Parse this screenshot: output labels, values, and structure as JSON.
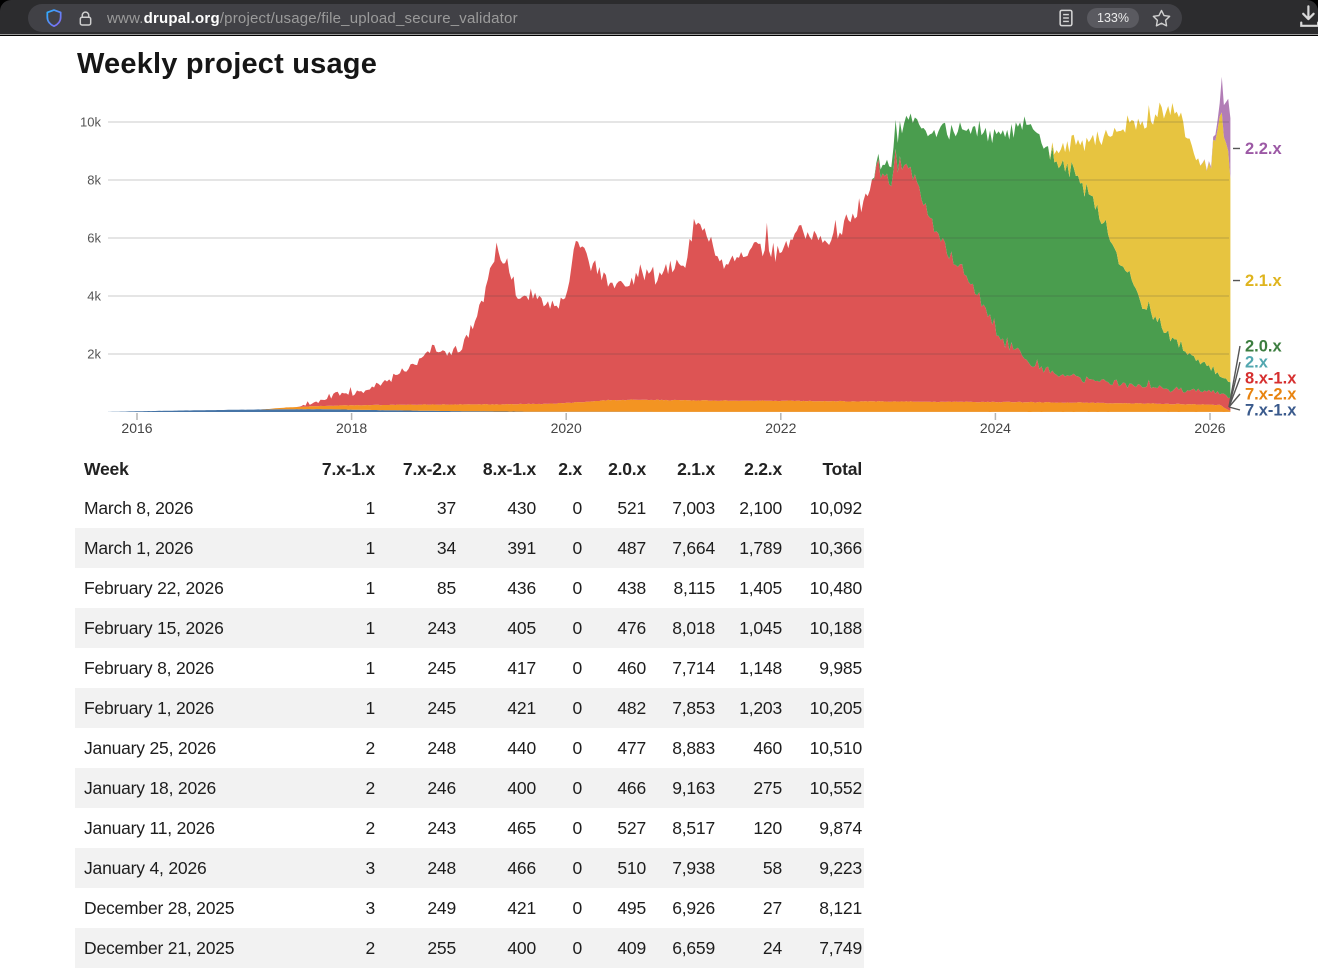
{
  "browser": {
    "url_prefix": "www.",
    "url_domain": "drupal.org",
    "url_path": "/project/usage/file_upload_secure_validator",
    "zoom_badge": "133%",
    "icons": {
      "shield": "shield-outline",
      "lock": "padlock",
      "reader_view": "document-lines",
      "bookmark": "star-outline",
      "download": "arrow-into-tray"
    }
  },
  "page": {
    "title": "Weekly project usage"
  },
  "chart_data": {
    "type": "area",
    "stacked": true,
    "title": "Weekly project usage",
    "grid": true,
    "legend_position": "right",
    "x_domain": [
      2015.73,
      2026.19
    ],
    "ylim": [
      0,
      10800
    ],
    "x_ticks": [
      2016,
      2018,
      2020,
      2022,
      2024,
      2026
    ],
    "y_ticks": [
      {
        "v": 2000,
        "label": "2k"
      },
      {
        "v": 4000,
        "label": "4k"
      },
      {
        "v": 6000,
        "label": "6k"
      },
      {
        "v": 8000,
        "label": "8k"
      },
      {
        "v": 10000,
        "label": "10k"
      }
    ],
    "series": [
      {
        "name": "7.x-1.x",
        "color": "#4674a6",
        "label_color": "#3a5a8c",
        "jitter": 0.4,
        "keypoints": [
          [
            2015.73,
            3
          ],
          [
            2016,
            25
          ],
          [
            2016.3,
            45
          ],
          [
            2016.6,
            62
          ],
          [
            2017,
            82
          ],
          [
            2017.4,
            95
          ],
          [
            2017.7,
            100
          ],
          [
            2018,
            80
          ],
          [
            2018.4,
            58
          ],
          [
            2018.8,
            38
          ],
          [
            2019.2,
            22
          ],
          [
            2019.6,
            12
          ],
          [
            2020,
            7
          ],
          [
            2021,
            4
          ],
          [
            2022,
            3
          ],
          [
            2024,
            2
          ],
          [
            2026.19,
            2
          ]
        ]
      },
      {
        "name": "7.x-2.x",
        "color": "#f39422",
        "label_color": "#e8830f",
        "jitter": 0.9,
        "keypoints": [
          [
            2017.15,
            0
          ],
          [
            2017.4,
            60
          ],
          [
            2017.7,
            110
          ],
          [
            2018,
            150
          ],
          [
            2018.5,
            200
          ],
          [
            2019,
            230
          ],
          [
            2019.5,
            255
          ],
          [
            2019.9,
            280
          ],
          [
            2020.1,
            330
          ],
          [
            2020.4,
            400
          ],
          [
            2020.7,
            420
          ],
          [
            2021,
            405
          ],
          [
            2021.5,
            390
          ],
          [
            2022,
            385
          ],
          [
            2022.5,
            372
          ],
          [
            2023,
            362
          ],
          [
            2023.5,
            352
          ],
          [
            2024,
            342
          ],
          [
            2024.5,
            332
          ],
          [
            2025,
            312
          ],
          [
            2025.5,
            285
          ],
          [
            2025.9,
            258
          ],
          [
            2026.02,
            250
          ],
          [
            2026.1,
            243
          ],
          [
            2026.13,
            150
          ],
          [
            2026.16,
            85
          ],
          [
            2026.19,
            36
          ]
        ]
      },
      {
        "name": "8.x-1.x",
        "color": "#dd5454",
        "label_color": "#d62f2f",
        "jitter": 6,
        "spike": 0.03,
        "keypoints": [
          [
            2017.5,
            0
          ],
          [
            2017.7,
            150
          ],
          [
            2017.85,
            420
          ],
          [
            2018.0,
            360
          ],
          [
            2018.2,
            620
          ],
          [
            2018.4,
            1000
          ],
          [
            2018.6,
            1400
          ],
          [
            2018.75,
            1950
          ],
          [
            2018.9,
            1650
          ],
          [
            2019.05,
            2150
          ],
          [
            2019.2,
            3300
          ],
          [
            2019.35,
            5300
          ],
          [
            2019.45,
            5100
          ],
          [
            2019.55,
            3650
          ],
          [
            2019.7,
            3950
          ],
          [
            2019.85,
            3250
          ],
          [
            2020.0,
            3650
          ],
          [
            2020.1,
            5450
          ],
          [
            2020.2,
            4900
          ],
          [
            2020.35,
            4250
          ],
          [
            2020.5,
            4050
          ],
          [
            2020.65,
            4350
          ],
          [
            2020.8,
            4250
          ],
          [
            2020.95,
            4450
          ],
          [
            2021.1,
            4650
          ],
          [
            2021.2,
            6100
          ],
          [
            2021.3,
            5650
          ],
          [
            2021.45,
            4850
          ],
          [
            2021.6,
            4950
          ],
          [
            2021.75,
            5350
          ],
          [
            2021.9,
            5050
          ],
          [
            2022.0,
            5250
          ],
          [
            2022.1,
            5650
          ],
          [
            2022.25,
            6050
          ],
          [
            2022.35,
            5550
          ],
          [
            2022.5,
            5650
          ],
          [
            2022.6,
            6250
          ],
          [
            2022.7,
            6050
          ],
          [
            2022.8,
            7350
          ],
          [
            2022.9,
            8050
          ],
          [
            2023.0,
            7650
          ],
          [
            2023.1,
            8250
          ],
          [
            2023.2,
            7850
          ],
          [
            2023.35,
            6850
          ],
          [
            2023.5,
            5550
          ],
          [
            2023.65,
            4650
          ],
          [
            2023.8,
            3850
          ],
          [
            2023.95,
            2850
          ],
          [
            2024.1,
            2050
          ],
          [
            2024.25,
            1550
          ],
          [
            2024.4,
            1220
          ],
          [
            2024.6,
            980
          ],
          [
            2024.8,
            830
          ],
          [
            2025.0,
            720
          ],
          [
            2025.3,
            610
          ],
          [
            2025.6,
            530
          ],
          [
            2025.9,
            460
          ],
          [
            2026.05,
            430
          ],
          [
            2026.19,
            420
          ]
        ]
      },
      {
        "name": "2.x",
        "color": "#55aab2",
        "label_color": "#52a7af",
        "jitter": 0,
        "keypoints": [
          [
            2015.73,
            0
          ],
          [
            2026.19,
            0
          ]
        ]
      },
      {
        "name": "2.0.x",
        "color": "#4a9d4e",
        "label_color": "#3c7d3f",
        "jitter": 5,
        "keypoints": [
          [
            2022.85,
            0
          ],
          [
            2023.0,
            500
          ],
          [
            2023.1,
            1100
          ],
          [
            2023.2,
            1750
          ],
          [
            2023.35,
            2600
          ],
          [
            2023.5,
            3900
          ],
          [
            2023.65,
            4700
          ],
          [
            2023.8,
            5400
          ],
          [
            2023.95,
            6300
          ],
          [
            2024.1,
            7200
          ],
          [
            2024.25,
            8000
          ],
          [
            2024.35,
            8200
          ],
          [
            2024.45,
            7700
          ],
          [
            2024.55,
            7300
          ],
          [
            2024.65,
            7400
          ],
          [
            2024.75,
            6900
          ],
          [
            2024.9,
            6300
          ],
          [
            2025.05,
            5100
          ],
          [
            2025.2,
            4000
          ],
          [
            2025.35,
            3000
          ],
          [
            2025.5,
            2300
          ],
          [
            2025.65,
            1750
          ],
          [
            2025.8,
            1250
          ],
          [
            2025.95,
            900
          ],
          [
            2026.05,
            700
          ],
          [
            2026.12,
            560
          ],
          [
            2026.19,
            521
          ]
        ]
      },
      {
        "name": "2.1.x",
        "color": "#e7c440",
        "label_color": "#dfb41e",
        "jitter": 4.5,
        "keypoints": [
          [
            2024.5,
            0
          ],
          [
            2024.6,
            500
          ],
          [
            2024.75,
            1100
          ],
          [
            2024.9,
            1900
          ],
          [
            2025.0,
            2900
          ],
          [
            2025.1,
            3900
          ],
          [
            2025.2,
            4900
          ],
          [
            2025.3,
            5700
          ],
          [
            2025.4,
            6400
          ],
          [
            2025.5,
            7100
          ],
          [
            2025.6,
            7800
          ],
          [
            2025.7,
            8100
          ],
          [
            2025.78,
            7500
          ],
          [
            2025.85,
            7100
          ],
          [
            2025.92,
            6800
          ],
          [
            2025.97,
            6660
          ],
          [
            2026.0,
            6900
          ],
          [
            2026.04,
            7900
          ],
          [
            2026.07,
            8500
          ],
          [
            2026.1,
            9160
          ],
          [
            2026.12,
            8880
          ],
          [
            2026.14,
            7850
          ],
          [
            2026.16,
            8020
          ],
          [
            2026.18,
            7660
          ],
          [
            2026.19,
            7000
          ]
        ]
      },
      {
        "name": "2.2.x",
        "color": "#b27db6",
        "label_color": "#9c59a5",
        "jitter": 2.5,
        "keypoints": [
          [
            2025.9,
            0
          ],
          [
            2025.97,
            24
          ],
          [
            2026.0,
            58
          ],
          [
            2026.03,
            120
          ],
          [
            2026.06,
            275
          ],
          [
            2026.09,
            460
          ],
          [
            2026.11,
            1203
          ],
          [
            2026.13,
            1148
          ],
          [
            2026.15,
            1405
          ],
          [
            2026.17,
            1789
          ],
          [
            2026.19,
            2100
          ]
        ]
      }
    ],
    "legend_order_top_to_bottom": [
      "2.2.x",
      "2.1.x",
      "2.0.x",
      "2.x",
      "8.x-1.x",
      "7.x-2.x",
      "7.x-1.x"
    ]
  },
  "table": {
    "columns": [
      "Week",
      "7.x-1.x",
      "7.x-2.x",
      "8.x-1.x",
      "2.x",
      "2.0.x",
      "2.1.x",
      "2.2.x",
      "Total"
    ],
    "rows": [
      [
        "March 8, 2026",
        "1",
        "37",
        "430",
        "0",
        "521",
        "7,003",
        "2,100",
        "10,092"
      ],
      [
        "March 1, 2026",
        "1",
        "34",
        "391",
        "0",
        "487",
        "7,664",
        "1,789",
        "10,366"
      ],
      [
        "February 22, 2026",
        "1",
        "85",
        "436",
        "0",
        "438",
        "8,115",
        "1,405",
        "10,480"
      ],
      [
        "February 15, 2026",
        "1",
        "243",
        "405",
        "0",
        "476",
        "8,018",
        "1,045",
        "10,188"
      ],
      [
        "February 8, 2026",
        "1",
        "245",
        "417",
        "0",
        "460",
        "7,714",
        "1,148",
        "9,985"
      ],
      [
        "February 1, 2026",
        "1",
        "245",
        "421",
        "0",
        "482",
        "7,853",
        "1,203",
        "10,205"
      ],
      [
        "January 25, 2026",
        "2",
        "248",
        "440",
        "0",
        "477",
        "8,883",
        "460",
        "10,510"
      ],
      [
        "January 18, 2026",
        "2",
        "246",
        "400",
        "0",
        "466",
        "9,163",
        "275",
        "10,552"
      ],
      [
        "January 11, 2026",
        "2",
        "243",
        "465",
        "0",
        "527",
        "8,517",
        "120",
        "9,874"
      ],
      [
        "January 4, 2026",
        "3",
        "248",
        "466",
        "0",
        "510",
        "7,938",
        "58",
        "9,223"
      ],
      [
        "December 28, 2025",
        "3",
        "249",
        "421",
        "0",
        "495",
        "6,926",
        "27",
        "8,121"
      ],
      [
        "December 21, 2025",
        "2",
        "255",
        "400",
        "0",
        "409",
        "6,659",
        "24",
        "7,749"
      ]
    ]
  }
}
